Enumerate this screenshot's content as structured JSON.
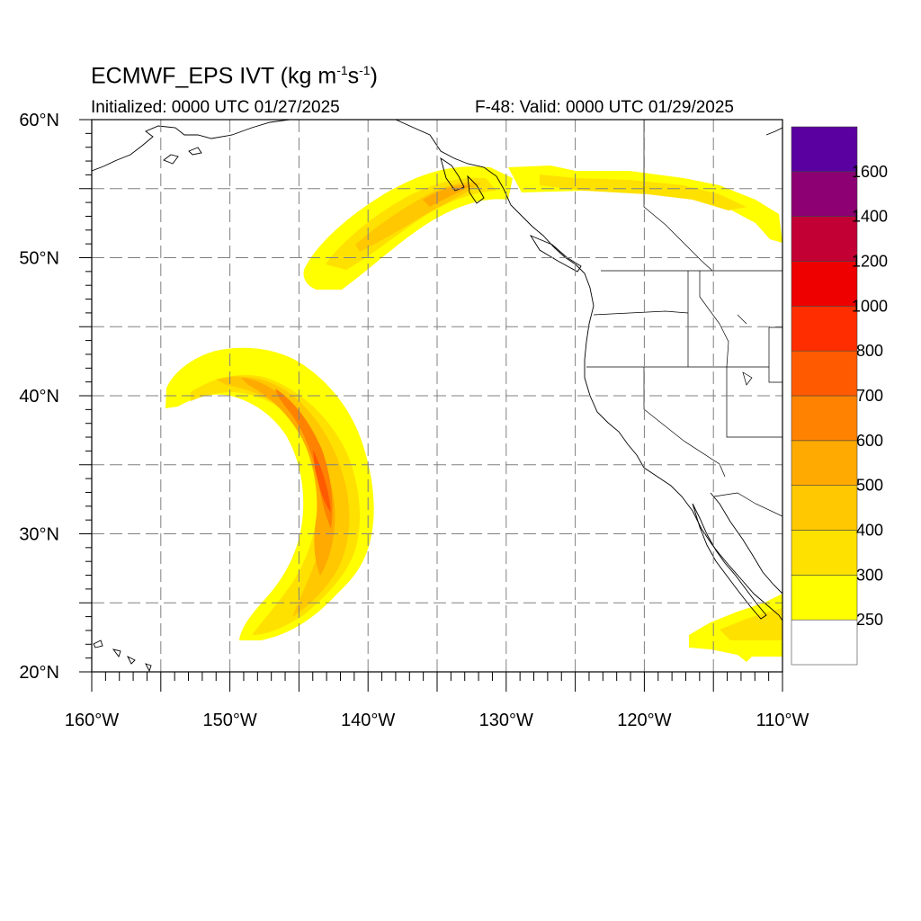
{
  "header": {
    "title_main": "ECMWF_EPS IVT (kg m",
    "title_sup1": "-1",
    "title_mid": "s",
    "title_sup2": "-1",
    "title_end": ")",
    "initialized": "Initialized: 0000 UTC 01/27/2025",
    "valid": "F-48: Valid: 0000 UTC 01/29/2025"
  },
  "map": {
    "projection": "cylindrical lon-lat",
    "lon_range": [
      -160,
      -110
    ],
    "lat_range": [
      20,
      60
    ],
    "grid": "dashed every 5°",
    "lon_ticks": [
      {
        "value": -160,
        "label": "160°W"
      },
      {
        "value": -150,
        "label": "150°W"
      },
      {
        "value": -140,
        "label": "140°W"
      },
      {
        "value": -130,
        "label": "130°W"
      },
      {
        "value": -120,
        "label": "120°W"
      },
      {
        "value": -110,
        "label": "110°W"
      }
    ],
    "lat_ticks": [
      {
        "value": 60,
        "label": "60°N"
      },
      {
        "value": 50,
        "label": "50°N"
      },
      {
        "value": 40,
        "label": "40°N"
      },
      {
        "value": 30,
        "label": "30°N"
      },
      {
        "value": 20,
        "label": "20°N"
      }
    ]
  },
  "colorbar": {
    "placement": "right",
    "labels": [
      "250",
      "300",
      "400",
      "500",
      "600",
      "700",
      "800",
      "1000",
      "1200",
      "1400",
      "1600"
    ],
    "colors_bottom_to_top": [
      "#ffffff",
      "#ffff00",
      "#ffe100",
      "#ffc800",
      "#ffaa00",
      "#ff8200",
      "#ff5a00",
      "#ff2d00",
      "#ee0000",
      "#c20033",
      "#8c0073",
      "#5a00a0"
    ]
  },
  "fields": {
    "ivt_bands": [
      {
        "name": "gulf of alaska plume",
        "level": 400
      },
      {
        "name": "pacific crescent",
        "level": 700
      },
      {
        "name": "canada band",
        "level": 300
      },
      {
        "name": "baja blob",
        "level": 300
      }
    ]
  }
}
